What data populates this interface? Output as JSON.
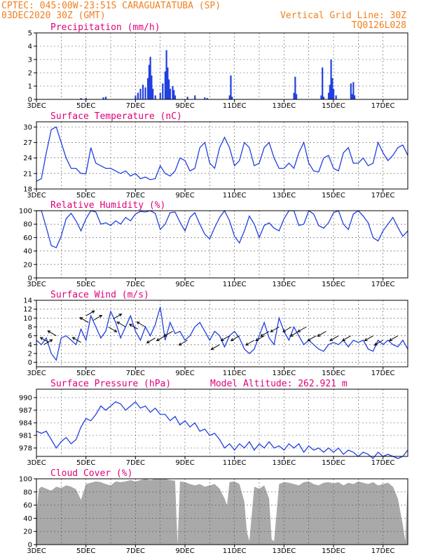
{
  "header": {
    "line1": "CPTEC:   045:00W-23:51S   CARAGUATATUBA (SP)",
    "line2": "03DEC2020 30Z (GMT)",
    "grid_note": "Vertical Grid Line: 30Z",
    "code": "TQ0126L028",
    "color": "#f08020"
  },
  "title_color": "#e0007a",
  "line_color": "#2040e0",
  "cloud_color": "#a9a9a9",
  "x_days": [
    "3DEC",
    "5DEC",
    "7DEC",
    "9DEC",
    "11DEC",
    "13DEC",
    "15DEC",
    "17DEC"
  ],
  "chart_data": [
    {
      "id": "precipitation",
      "type": "bar",
      "title": "Precipitation (mm/h)",
      "ylim": [
        0,
        5
      ],
      "yticks": [
        0,
        1,
        2,
        3,
        4,
        5
      ],
      "x_range_days": [
        3,
        18
      ],
      "bars": [
        [
          4.8,
          0.1
        ],
        [
          5.0,
          0.1
        ],
        [
          5.7,
          0.15
        ],
        [
          5.8,
          0.2
        ],
        [
          7.0,
          0.3
        ],
        [
          7.1,
          0.5
        ],
        [
          7.2,
          0.8
        ],
        [
          7.3,
          1.1
        ],
        [
          7.4,
          0.9
        ],
        [
          7.5,
          1.6
        ],
        [
          7.55,
          2.6
        ],
        [
          7.6,
          3.2
        ],
        [
          7.65,
          1.8
        ],
        [
          7.7,
          0.8
        ],
        [
          7.8,
          0.3
        ],
        [
          8.0,
          0.5
        ],
        [
          8.1,
          1.2
        ],
        [
          8.2,
          2.1
        ],
        [
          8.25,
          3.7
        ],
        [
          8.3,
          2.4
        ],
        [
          8.35,
          1.5
        ],
        [
          8.4,
          0.8
        ],
        [
          8.5,
          1.0
        ],
        [
          8.55,
          0.7
        ],
        [
          8.6,
          0.3
        ],
        [
          9.1,
          0.2
        ],
        [
          9.4,
          0.3
        ],
        [
          9.8,
          0.15
        ],
        [
          9.9,
          0.1
        ],
        [
          10.8,
          0.3
        ],
        [
          10.85,
          1.8
        ],
        [
          10.9,
          0.2
        ],
        [
          13.4,
          0.5
        ],
        [
          13.45,
          1.7
        ],
        [
          13.5,
          0.4
        ],
        [
          14.5,
          0.3
        ],
        [
          14.55,
          2.4
        ],
        [
          14.6,
          0.2
        ],
        [
          14.8,
          0.5
        ],
        [
          14.85,
          1.1
        ],
        [
          14.9,
          3.0
        ],
        [
          14.95,
          1.6
        ],
        [
          15.0,
          0.8
        ],
        [
          15.1,
          0.3
        ],
        [
          15.7,
          1.2
        ],
        [
          15.75,
          0.4
        ],
        [
          15.8,
          1.3
        ],
        [
          15.85,
          0.3
        ]
      ]
    },
    {
      "id": "temperature",
      "type": "line",
      "title": "Surface Temperature (nC)",
      "ylim": [
        18,
        31
      ],
      "yticks": [
        18,
        21,
        24,
        27,
        30
      ],
      "x_range_days": [
        3,
        18
      ],
      "x": [
        3.0,
        3.2,
        3.4,
        3.6,
        3.8,
        4.0,
        4.2,
        4.4,
        4.6,
        4.8,
        5.0,
        5.2,
        5.4,
        5.6,
        5.8,
        6.0,
        6.2,
        6.4,
        6.6,
        6.8,
        7.0,
        7.2,
        7.4,
        7.6,
        7.8,
        8.0,
        8.2,
        8.4,
        8.6,
        8.8,
        9.0,
        9.2,
        9.4,
        9.6,
        9.8,
        10.0,
        10.2,
        10.4,
        10.6,
        10.8,
        11.0,
        11.2,
        11.4,
        11.6,
        11.8,
        12.0,
        12.2,
        12.4,
        12.6,
        12.8,
        13.0,
        13.2,
        13.4,
        13.6,
        13.8,
        14.0,
        14.2,
        14.4,
        14.6,
        14.8,
        15.0,
        15.2,
        15.4,
        15.6,
        15.8,
        16.0,
        16.2,
        16.4,
        16.6,
        16.8,
        17.0,
        17.2,
        17.4,
        17.6,
        17.8,
        18.0
      ],
      "values": [
        19.5,
        20,
        25,
        29.5,
        30,
        27,
        24,
        22,
        22,
        21,
        21,
        26,
        23,
        22.5,
        22,
        22,
        21.5,
        21,
        21.5,
        20.5,
        21,
        20,
        20.3,
        19.8,
        20,
        22.5,
        21,
        20.5,
        21.5,
        24,
        23.5,
        21.5,
        22,
        26,
        27,
        23,
        22,
        26,
        28,
        26,
        22.5,
        23.5,
        27,
        26,
        22.5,
        23,
        26,
        27,
        24,
        22,
        22,
        23,
        22,
        25,
        27,
        23,
        21.5,
        21.3,
        24,
        24.5,
        22,
        21.5,
        25,
        26,
        23,
        23,
        24,
        22.5,
        23,
        27,
        25,
        23.5,
        24.5,
        26,
        26.5,
        24.5
      ]
    },
    {
      "id": "humidity",
      "type": "line",
      "title": "Relative Humidity (%)",
      "ylim": [
        0,
        100
      ],
      "yticks": [
        0,
        20,
        40,
        60,
        80,
        100
      ],
      "x_range_days": [
        3,
        18
      ],
      "x": [
        3.0,
        3.2,
        3.4,
        3.6,
        3.8,
        4.0,
        4.2,
        4.4,
        4.6,
        4.8,
        5.0,
        5.2,
        5.4,
        5.6,
        5.8,
        6.0,
        6.2,
        6.4,
        6.6,
        6.8,
        7.0,
        7.2,
        7.4,
        7.6,
        7.8,
        8.0,
        8.2,
        8.4,
        8.6,
        8.8,
        9.0,
        9.2,
        9.4,
        9.6,
        9.8,
        10.0,
        10.2,
        10.4,
        10.6,
        10.8,
        11.0,
        11.2,
        11.4,
        11.6,
        11.8,
        12.0,
        12.2,
        12.4,
        12.6,
        12.8,
        13.0,
        13.2,
        13.4,
        13.6,
        13.8,
        14.0,
        14.2,
        14.4,
        14.6,
        14.8,
        15.0,
        15.2,
        15.4,
        15.6,
        15.8,
        16.0,
        16.2,
        16.4,
        16.6,
        16.8,
        17.0,
        17.2,
        17.4,
        17.6,
        17.8,
        18.0
      ],
      "values": [
        100,
        100,
        75,
        48,
        45,
        62,
        88,
        96,
        85,
        70,
        88,
        100,
        98,
        80,
        82,
        78,
        85,
        80,
        90,
        85,
        95,
        99,
        98,
        100,
        96,
        72,
        80,
        97,
        98,
        83,
        70,
        90,
        97,
        80,
        65,
        58,
        75,
        90,
        100,
        85,
        62,
        52,
        70,
        92,
        80,
        60,
        78,
        82,
        74,
        70,
        88,
        100,
        100,
        78,
        80,
        100,
        95,
        78,
        74,
        82,
        97,
        100,
        80,
        72,
        95,
        100,
        92,
        82,
        60,
        55,
        70,
        80,
        90,
        75,
        62,
        70
      ]
    },
    {
      "id": "wind",
      "type": "line",
      "title": "Surface Wind (m/s)",
      "ylim": [
        -1,
        14
      ],
      "yticks": [
        0,
        2,
        4,
        6,
        8,
        10,
        12,
        14
      ],
      "x_range_days": [
        3,
        18
      ],
      "x": [
        3.0,
        3.2,
        3.4,
        3.6,
        3.8,
        4.0,
        4.2,
        4.4,
        4.6,
        4.8,
        5.0,
        5.2,
        5.4,
        5.6,
        5.8,
        6.0,
        6.2,
        6.4,
        6.6,
        6.8,
        7.0,
        7.2,
        7.4,
        7.6,
        7.8,
        8.0,
        8.2,
        8.4,
        8.6,
        8.8,
        9.0,
        9.2,
        9.4,
        9.6,
        9.8,
        10.0,
        10.2,
        10.4,
        10.6,
        10.8,
        11.0,
        11.2,
        11.4,
        11.6,
        11.8,
        12.0,
        12.2,
        12.4,
        12.6,
        12.8,
        13.0,
        13.2,
        13.4,
        13.6,
        13.8,
        14.0,
        14.2,
        14.4,
        14.6,
        14.8,
        15.0,
        15.2,
        15.4,
        15.6,
        15.8,
        16.0,
        16.2,
        16.4,
        16.6,
        16.8,
        17.0,
        17.2,
        17.4,
        17.6,
        17.8,
        18.0
      ],
      "values": [
        5,
        4,
        5.5,
        2,
        0.5,
        5.5,
        6,
        5,
        4,
        7.5,
        5,
        10.5,
        8,
        5.5,
        7,
        11.5,
        9,
        5.5,
        8,
        10.5,
        7,
        5,
        8,
        6,
        8.5,
        12.5,
        5,
        9,
        6.5,
        7,
        5,
        6,
        8,
        9,
        7,
        5,
        7,
        6,
        3.5,
        6,
        7,
        5.5,
        3,
        2,
        3,
        6,
        9,
        5.5,
        4,
        10,
        7,
        5,
        8,
        6,
        4,
        5,
        4,
        3,
        2.5,
        4,
        4.5,
        4,
        5,
        3.5,
        5,
        4.5,
        5,
        3,
        2.5,
        5,
        4,
        5,
        4,
        3.5,
        5,
        3
      ],
      "arrows": [
        [
          3.3,
          4,
          1,
          1
        ],
        [
          3.5,
          4.5,
          -1,
          1
        ],
        [
          3.8,
          6,
          -1,
          1
        ],
        [
          4.8,
          4.5,
          -1,
          1
        ],
        [
          5.0,
          10.5,
          1,
          1
        ],
        [
          5.1,
          9,
          -1,
          1
        ],
        [
          5.3,
          9.5,
          1,
          1
        ],
        [
          5.9,
          8,
          1,
          -1
        ],
        [
          6.1,
          9.8,
          1,
          1
        ],
        [
          6.6,
          8,
          -1,
          1
        ],
        [
          7.1,
          7.5,
          -1,
          1
        ],
        [
          7.4,
          8,
          -1,
          1
        ],
        [
          7.8,
          5.5,
          -1,
          -1
        ],
        [
          8.2,
          6,
          -1,
          -1
        ],
        [
          8.5,
          7,
          -1,
          -1
        ],
        [
          9.1,
          5,
          -1,
          -1
        ],
        [
          10.4,
          4,
          -1,
          -1
        ],
        [
          10.8,
          6,
          -1,
          -1
        ],
        [
          11.2,
          6,
          -1,
          -1
        ],
        [
          11.8,
          5,
          -1,
          -1
        ],
        [
          12.2,
          6,
          -1,
          -1
        ],
        [
          12.4,
          7,
          -1,
          -1
        ],
        [
          12.8,
          8,
          -1,
          -1
        ],
        [
          13.3,
          8,
          -1,
          -1
        ],
        [
          13.6,
          7,
          -1,
          -1
        ],
        [
          13.9,
          8,
          -1,
          -1
        ],
        [
          14.3,
          6,
          -1,
          -1
        ],
        [
          14.7,
          7,
          -1,
          -1
        ],
        [
          15.2,
          6,
          -1,
          -1
        ],
        [
          15.7,
          6,
          -1,
          -1
        ],
        [
          16.6,
          6,
          -1,
          -1
        ],
        [
          17.0,
          5,
          -1,
          -1
        ],
        [
          17.6,
          6,
          -1,
          -1
        ]
      ]
    },
    {
      "id": "pressure",
      "type": "line",
      "title": "Surface Pressure (hPa)",
      "model_altitude": "Model Altitude: 262.921 m",
      "ylim": [
        976,
        992
      ],
      "yticks": [
        978,
        981,
        984,
        987,
        990
      ],
      "x_range_days": [
        3,
        18
      ],
      "x": [
        3.0,
        3.2,
        3.4,
        3.6,
        3.8,
        4.0,
        4.2,
        4.4,
        4.6,
        4.8,
        5.0,
        5.2,
        5.4,
        5.6,
        5.8,
        6.0,
        6.2,
        6.4,
        6.6,
        6.8,
        7.0,
        7.2,
        7.4,
        7.6,
        7.8,
        8.0,
        8.2,
        8.4,
        8.6,
        8.8,
        9.0,
        9.2,
        9.4,
        9.6,
        9.8,
        10.0,
        10.2,
        10.4,
        10.6,
        10.8,
        11.0,
        11.2,
        11.4,
        11.6,
        11.8,
        12.0,
        12.2,
        12.4,
        12.6,
        12.8,
        13.0,
        13.2,
        13.4,
        13.6,
        13.8,
        14.0,
        14.2,
        14.4,
        14.6,
        14.8,
        15.0,
        15.2,
        15.4,
        15.6,
        15.8,
        16.0,
        16.2,
        16.4,
        16.6,
        16.8,
        17.0,
        17.2,
        17.4,
        17.6,
        17.8,
        18.0
      ],
      "values": [
        982,
        981.5,
        982,
        980,
        978,
        979.5,
        980.5,
        979,
        980,
        983,
        985,
        984.5,
        986,
        988,
        987,
        988,
        989,
        988.5,
        987,
        988,
        989,
        987.5,
        988,
        986.5,
        987.5,
        986,
        986,
        984.5,
        985.5,
        983.5,
        984.5,
        983,
        984,
        982,
        982.5,
        981,
        981.5,
        980,
        978,
        979,
        977.5,
        979,
        978,
        979.5,
        977.5,
        979,
        978,
        979.5,
        978,
        978.5,
        977.5,
        979,
        978,
        979,
        977,
        978.5,
        977.5,
        978,
        977,
        978,
        977,
        978,
        976.5,
        977.5,
        977,
        976,
        977,
        976.5,
        975.5,
        977,
        976,
        976.5,
        976,
        975.5,
        976,
        977.5
      ]
    },
    {
      "id": "cloud_cover",
      "type": "area",
      "title": "Cloud Cover (%)",
      "ylim": [
        0,
        100
      ],
      "yticks": [
        0,
        20,
        40,
        60,
        80,
        100
      ],
      "x_range_days": [
        3,
        18
      ],
      "x": [
        3.0,
        3.1,
        3.2,
        3.4,
        3.6,
        3.8,
        4.0,
        4.2,
        4.4,
        4.6,
        4.8,
        5.0,
        5.2,
        5.4,
        5.6,
        5.8,
        6.0,
        6.2,
        6.4,
        6.6,
        6.8,
        7.0,
        7.2,
        7.4,
        7.6,
        7.8,
        8.0,
        8.2,
        8.4,
        8.6,
        8.7,
        8.8,
        9.0,
        9.2,
        9.4,
        9.6,
        9.8,
        10.0,
        10.2,
        10.4,
        10.6,
        10.7,
        10.8,
        11.0,
        11.2,
        11.4,
        11.5,
        11.6,
        11.8,
        12.0,
        12.2,
        12.4,
        12.5,
        12.6,
        12.8,
        13.0,
        13.2,
        13.4,
        13.6,
        13.8,
        14.0,
        14.2,
        14.4,
        14.6,
        14.8,
        15.0,
        15.2,
        15.4,
        15.6,
        15.8,
        16.0,
        16.2,
        16.4,
        16.6,
        16.8,
        17.0,
        17.2,
        17.4,
        17.6,
        17.8,
        17.9,
        18.0
      ],
      "values": [
        45,
        85,
        88,
        85,
        82,
        88,
        86,
        90,
        88,
        84,
        68,
        92,
        94,
        96,
        95,
        92,
        90,
        96,
        95,
        96,
        98,
        96,
        98,
        100,
        98,
        100,
        99,
        100,
        98,
        97,
        0,
        96,
        95,
        92,
        90,
        92,
        88,
        90,
        92,
        85,
        70,
        60,
        95,
        96,
        92,
        65,
        20,
        5,
        88,
        85,
        90,
        70,
        8,
        5,
        92,
        95,
        94,
        92,
        90,
        95,
        96,
        92,
        90,
        94,
        95,
        93,
        95,
        90,
        94,
        92,
        96,
        94,
        92,
        95,
        90,
        92,
        94,
        88,
        70,
        30,
        5,
        100
      ]
    }
  ]
}
